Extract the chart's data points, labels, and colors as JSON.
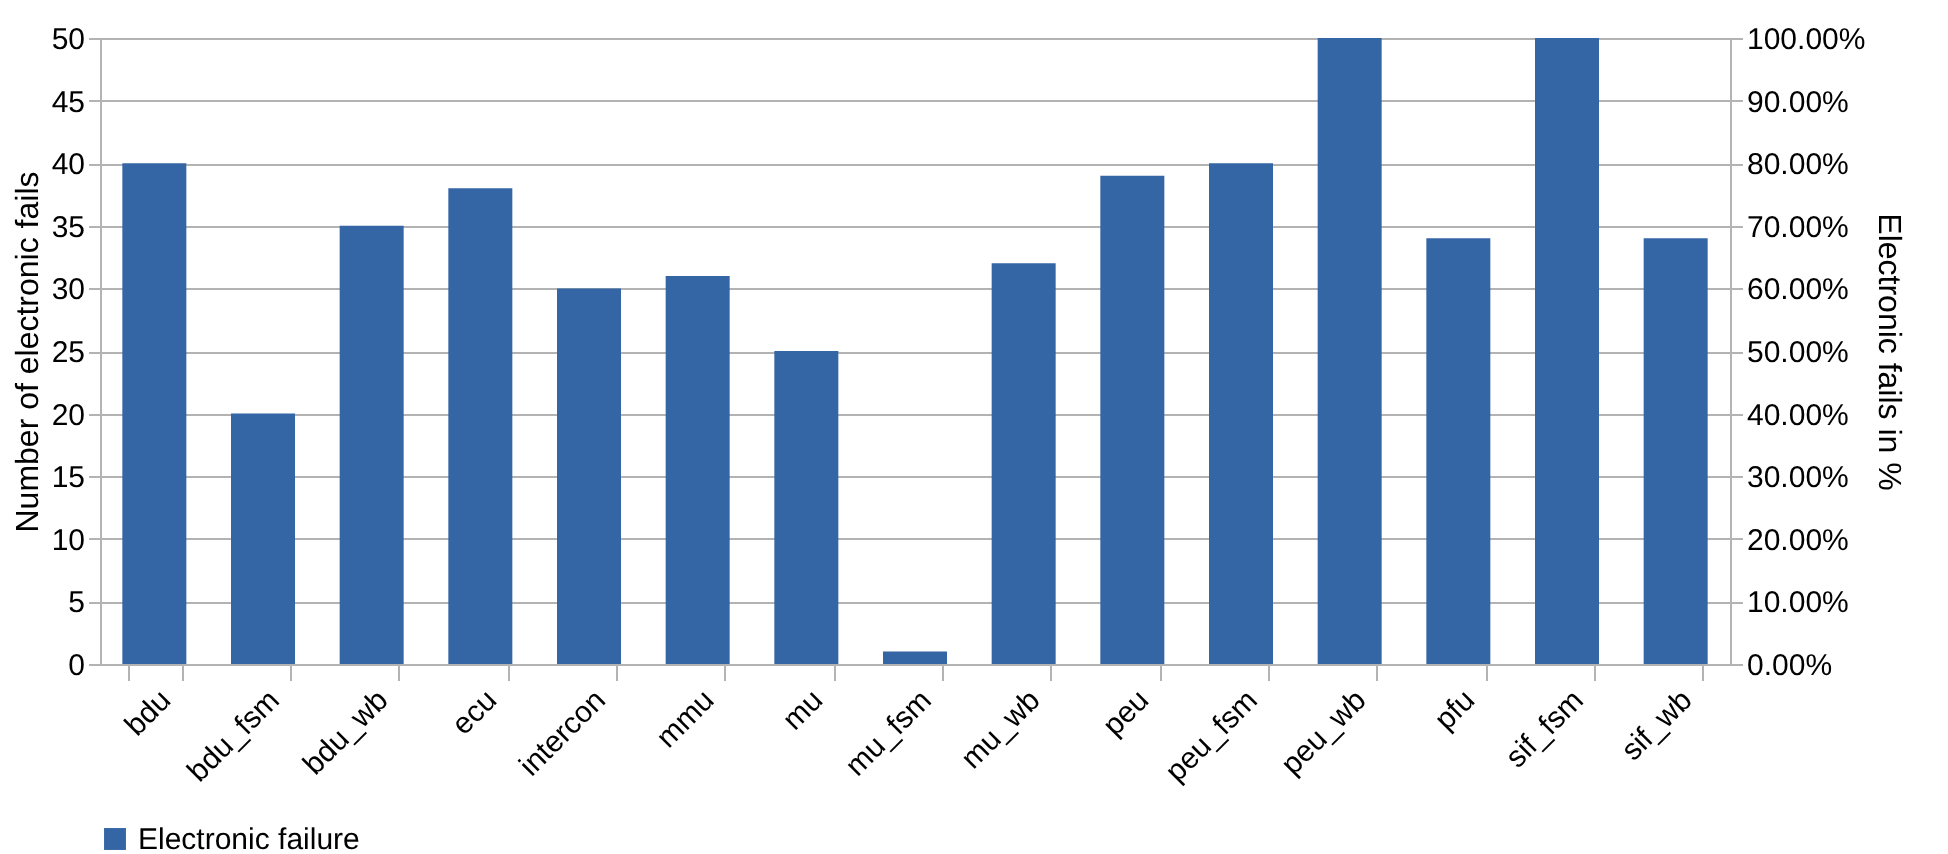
{
  "chart_data": {
    "type": "bar",
    "xlabel": null,
    "ylabel": "Number of electronic fails",
    "y2label": "Electronic fails in %",
    "categories": [
      "bdu",
      "bdu_fsm",
      "bdu_wb",
      "ecu",
      "intercon",
      "mmu",
      "mu",
      "mu_fsm",
      "mu_wb",
      "peu",
      "peu_fsm",
      "peu_wb",
      "pfu",
      "sif_fsm",
      "sif_wb"
    ],
    "series": [
      {
        "name": "Electronic failure",
        "color": "#3465a4",
        "values": [
          40,
          20,
          35,
          38,
          30,
          31,
          25,
          1,
          32,
          39,
          40,
          50,
          34,
          50,
          34
        ]
      }
    ],
    "ylim": [
      0,
      50
    ],
    "yticks": [
      0,
      5,
      10,
      15,
      20,
      25,
      30,
      35,
      40,
      45,
      50
    ],
    "y2lim": [
      0,
      100
    ],
    "y2ticks": [
      {
        "value": 0,
        "label": "0.00%"
      },
      {
        "value": 10,
        "label": "10.00%"
      },
      {
        "value": 20,
        "label": "20.00%"
      },
      {
        "value": 30,
        "label": "30.00%"
      },
      {
        "value": 40,
        "label": "40.00%"
      },
      {
        "value": 50,
        "label": "50.00%"
      },
      {
        "value": 60,
        "label": "60.00%"
      },
      {
        "value": 70,
        "label": "70.00%"
      },
      {
        "value": 80,
        "label": "80.00%"
      },
      {
        "value": 90,
        "label": "90.00%"
      },
      {
        "value": 100,
        "label": "100.00%"
      }
    ],
    "grid": "y",
    "legend": "bottom"
  }
}
